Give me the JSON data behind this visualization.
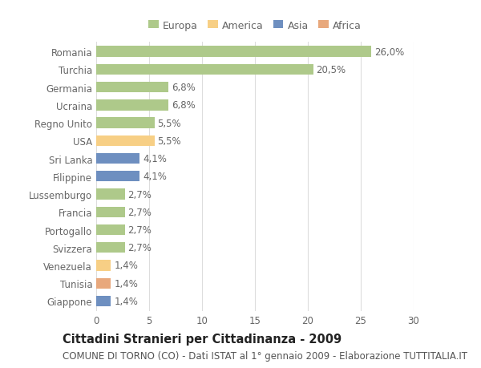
{
  "categories": [
    "Romania",
    "Turchia",
    "Germania",
    "Ucraina",
    "Regno Unito",
    "USA",
    "Sri Lanka",
    "Filippine",
    "Lussemburgo",
    "Francia",
    "Portogallo",
    "Svizzera",
    "Venezuela",
    "Tunisia",
    "Giappone"
  ],
  "values": [
    26.0,
    20.5,
    6.8,
    6.8,
    5.5,
    5.5,
    4.1,
    4.1,
    2.7,
    2.7,
    2.7,
    2.7,
    1.4,
    1.4,
    1.4
  ],
  "labels": [
    "26,0%",
    "20,5%",
    "6,8%",
    "6,8%",
    "5,5%",
    "5,5%",
    "4,1%",
    "4,1%",
    "2,7%",
    "2,7%",
    "2,7%",
    "2,7%",
    "1,4%",
    "1,4%",
    "1,4%"
  ],
  "bar_colors": [
    "#aec98a",
    "#aec98a",
    "#aec98a",
    "#aec98a",
    "#aec98a",
    "#f7cf85",
    "#6e8fc0",
    "#6e8fc0",
    "#aec98a",
    "#aec98a",
    "#aec98a",
    "#aec98a",
    "#f7cf85",
    "#e8a87c",
    "#6e8fc0"
  ],
  "legend_labels": [
    "Europa",
    "America",
    "Asia",
    "Africa"
  ],
  "legend_colors": [
    "#aec98a",
    "#f7cf85",
    "#6e8fc0",
    "#e8a87c"
  ],
  "title": "Cittadini Stranieri per Cittadinanza - 2009",
  "subtitle": "COMUNE DI TORNO (CO) - Dati ISTAT al 1° gennaio 2009 - Elaborazione TUTTITALIA.IT",
  "xlim": [
    0,
    30
  ],
  "xticks": [
    0,
    5,
    10,
    15,
    20,
    25,
    30
  ],
  "background_color": "#ffffff",
  "grid_color": "#dddddd",
  "bar_height": 0.6,
  "label_fontsize": 8.5,
  "tick_fontsize": 8.5,
  "title_fontsize": 10.5,
  "subtitle_fontsize": 8.5
}
